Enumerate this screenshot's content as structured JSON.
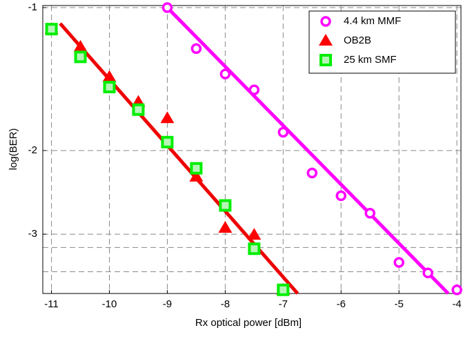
{
  "chart_data": {
    "type": "line",
    "xlabel": "Rx optical power [dBm]",
    "ylabel": "log(BER)",
    "yscale": "neglog",
    "xlim": [
      -11.15,
      -3.93
    ],
    "ylim": [
      -0.99,
      -4
    ],
    "xticks": [
      -11,
      -10,
      -9,
      -8,
      -7,
      -6,
      -5,
      -4
    ],
    "yticks": [
      -1,
      -2,
      -3
    ],
    "y_minor_grid": [
      -3.2,
      -3.6
    ],
    "grid": true,
    "legend": "upper right",
    "series": [
      {
        "name": "4.4 km MMF",
        "color": "#ff00ff",
        "marker": "circle",
        "x": [
          -9,
          -8.5,
          -8,
          -7.5,
          -7,
          -6.5,
          -6,
          -5.5,
          -5,
          -4.5,
          -4
        ],
        "values": [
          -1.0,
          -1.22,
          -1.38,
          -1.49,
          -1.83,
          -2.23,
          -2.49,
          -2.71,
          -3.44,
          -3.62,
          -3.93
        ]
      },
      {
        "name": "OB2B",
        "color": "#ff0000",
        "marker": "triangle",
        "x": [
          -11,
          -10.5,
          -10,
          -9.5,
          -9,
          -8.5,
          -8,
          -7.5,
          -7
        ],
        "values": [
          -1.11,
          -1.21,
          -1.4,
          -1.58,
          -1.71,
          -2.27,
          -2.91,
          -3.01,
          -3.93
        ]
      },
      {
        "name": "25 km SMF",
        "color": "#00ee00",
        "marker": "square",
        "x": [
          -11,
          -10.5,
          -10,
          -9.5,
          -9,
          -8.5,
          -8,
          -7.5,
          -7
        ],
        "values": [
          -1.11,
          -1.27,
          -1.47,
          -1.64,
          -1.92,
          -2.18,
          -2.61,
          -3.22,
          -3.93
        ]
      }
    ],
    "fit_lines": [
      {
        "color": "#ff00ff",
        "x": [
          -9,
          -4.15
        ],
        "values": [
          -1.0,
          -4.0
        ]
      },
      {
        "color": "#ee0000",
        "x": [
          -10.85,
          -6.75
        ],
        "values": [
          -1.08,
          -4.0
        ]
      }
    ]
  }
}
